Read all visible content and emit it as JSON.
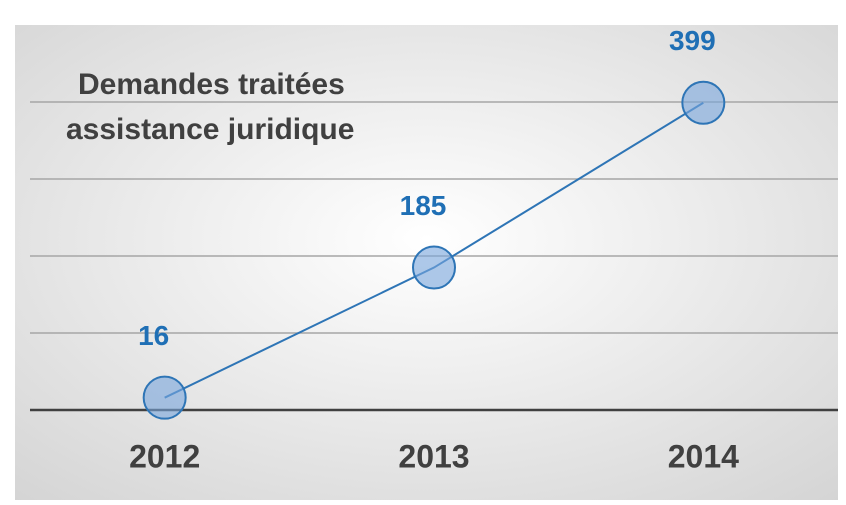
{
  "chart_data": {
    "type": "line",
    "title": [
      "Demandes traitées",
      "assistance juridique"
    ],
    "categories": [
      "2012",
      "2013",
      "2014"
    ],
    "series": [
      {
        "name": "Demandes traitées",
        "color": "#2e75b6",
        "values": [
          16,
          185,
          399
        ]
      }
    ],
    "ylim": [
      0,
      500
    ],
    "yticks": [
      0,
      100,
      200,
      300,
      400
    ],
    "grid": true
  }
}
